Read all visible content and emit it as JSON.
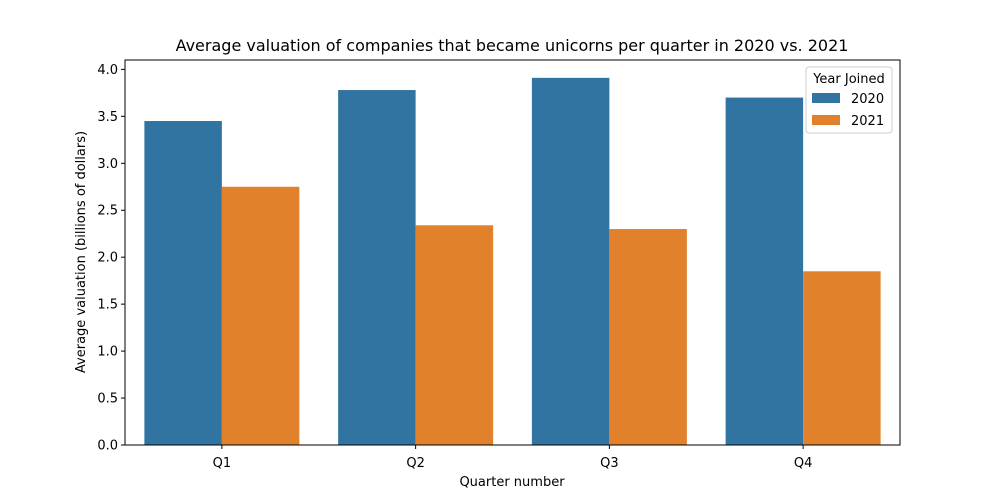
{
  "chart_data": {
    "type": "bar",
    "title": "Average valuation of companies that became unicorns per quarter in 2020 vs. 2021",
    "xlabel": "Quarter number",
    "ylabel": "Average valuation (billions of dollars)",
    "categories": [
      "Q1",
      "Q2",
      "Q3",
      "Q4"
    ],
    "ylim": [
      0,
      4.1
    ],
    "yticks": [
      "0.0",
      "0.5",
      "1.0",
      "1.5",
      "2.0",
      "2.5",
      "3.0",
      "3.5",
      "4.0"
    ],
    "grid": false,
    "legend": {
      "title": "Year Joined",
      "placement": "top-right"
    },
    "series": [
      {
        "name": "2020",
        "color": "#3274a1",
        "values": [
          3.45,
          3.78,
          3.91,
          3.7
        ]
      },
      {
        "name": "2021",
        "color": "#e1812c",
        "values": [
          2.75,
          2.34,
          2.3,
          1.85
        ]
      }
    ]
  }
}
